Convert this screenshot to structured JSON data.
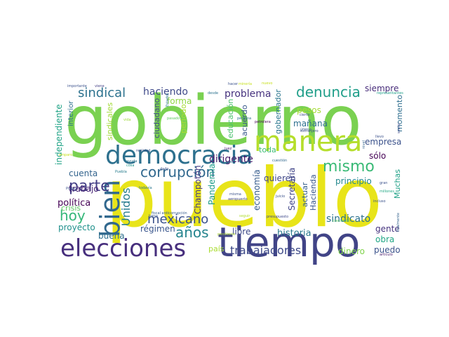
{
  "words": [
    {
      "text": "gobierno",
      "color": "#7ad151",
      "rot": 0
    },
    {
      "text": "pueblo",
      "color": "#e8e419",
      "rot": 0
    },
    {
      "text": "tiempo",
      "color": "#414487",
      "rot": 0
    },
    {
      "text": "elecciones",
      "color": "#472f7d",
      "rot": 0
    },
    {
      "text": "democracia",
      "color": "#2d708e",
      "rot": 0
    },
    {
      "text": "manera",
      "color": "#b5de2b",
      "rot": 0
    },
    {
      "text": "bien",
      "color": "#31688e",
      "rot": -90
    },
    {
      "text": "corrupción",
      "color": "#31688e",
      "rot": 0
    },
    {
      "text": "denuncia",
      "color": "#1f9e89",
      "rot": 0
    },
    {
      "text": "parte",
      "color": "#433e85",
      "rot": 0
    },
    {
      "text": "mismo",
      "color": "#3aba76",
      "rot": 0
    },
    {
      "text": "sindical",
      "color": "#2c728e",
      "rot": 0
    },
    {
      "text": "hoy",
      "color": "#35b779",
      "rot": 0
    },
    {
      "text": "mexicano",
      "color": "#3b528b",
      "rot": 0
    },
    {
      "text": "años",
      "color": "#25848e",
      "rot": 0
    },
    {
      "text": "Unidos",
      "color": "#287d8e",
      "rot": -90
    },
    {
      "text": "problema",
      "color": "#46327e",
      "rot": 0
    },
    {
      "text": "dirigente",
      "color": "#481a6c",
      "rot": 0
    },
    {
      "text": "trabajadores",
      "color": "#3e4a89",
      "rot": 0
    },
    {
      "text": "sindicato",
      "color": "#2c728e",
      "rot": 0
    },
    {
      "text": "independiente",
      "color": "#20a386",
      "rot": -90
    },
    {
      "text": "historia",
      "color": "#2a788e",
      "rot": 0
    },
    {
      "text": "siempre",
      "color": "#472c7a",
      "rot": 0
    },
    {
      "text": "empresa",
      "color": "#3b528b",
      "rot": 0
    },
    {
      "text": "sólo",
      "color": "#440154",
      "rot": 0
    },
    {
      "text": "haciendo",
      "color": "#3e4989",
      "rot": 0
    },
    {
      "text": "forma",
      "color": "#90d743",
      "rot": 0
    },
    {
      "text": "cuenta",
      "color": "#33638d",
      "rot": 0
    },
    {
      "text": "trabajo",
      "color": "#482576",
      "rot": 0
    },
    {
      "text": "política",
      "color": "#440154",
      "rot": 0
    },
    {
      "text": "proyecto",
      "color": "#21918c",
      "rot": 0
    },
    {
      "text": "crisis",
      "color": "#5ec962",
      "rot": 0
    },
    {
      "text": "buena",
      "color": "#2e6f8e",
      "rot": 0
    },
    {
      "text": "régimen",
      "color": "#39558c",
      "rot": 0
    },
    {
      "text": "país",
      "color": "#aadc32",
      "rot": 0
    },
    {
      "text": "libre",
      "color": "#3e4989",
      "rot": 0
    },
    {
      "text": "quieren",
      "color": "#3f4788",
      "rot": 0
    },
    {
      "text": "toda",
      "color": "#3dbc74",
      "rot": 0
    },
    {
      "text": "gente",
      "color": "#46337f",
      "rot": 0
    },
    {
      "text": "obra",
      "color": "#21a685",
      "rot": 0
    },
    {
      "text": "puedo",
      "color": "#3b528b",
      "rot": 0
    },
    {
      "text": "dinero",
      "color": "#81d34d",
      "rot": 0
    },
    {
      "text": "pesos",
      "color": "#a5db36",
      "rot": 0
    },
    {
      "text": "mañana",
      "color": "#2d708e",
      "rot": 0
    },
    {
      "text": "principio",
      "color": "#23888e",
      "rot": 0
    },
    {
      "text": "Muchas",
      "color": "#1fa187",
      "rot": -90
    },
    {
      "text": "Hacienda",
      "color": "#39568c",
      "rot": -90
    },
    {
      "text": "actuar",
      "color": "#355f8d",
      "rot": -90
    },
    {
      "text": "Secretaría",
      "color": "#404588",
      "rot": -90
    },
    {
      "text": "economía",
      "color": "#365c8d",
      "rot": -90
    },
    {
      "text": "Pandemia",
      "color": "#1e9c89",
      "rot": -90
    },
    {
      "text": "Champotón",
      "color": "#443a83",
      "rot": -90
    },
    {
      "text": "periodo",
      "color": "#aadc32",
      "rot": -90
    },
    {
      "text": "ciudadano",
      "color": "#3f4889",
      "rot": -90
    },
    {
      "text": "educación",
      "color": "#4ac16d",
      "rot": -90
    },
    {
      "text": "acuerdo",
      "color": "#38588c",
      "rot": -90
    },
    {
      "text": "gobernador",
      "color": "#2a768e",
      "rot": -90
    },
    {
      "text": "momento",
      "color": "#2e6e8e",
      "rot": -90
    },
    {
      "text": "sindicales",
      "color": "#a2da37",
      "rot": -90
    },
    {
      "text": "interior",
      "color": "#2d718e",
      "rot": -90
    },
    {
      "text": "importante",
      "color": "#3b518b",
      "rot": 0
    },
    {
      "text": "viene",
      "color": "#433e85",
      "rot": 0
    },
    {
      "text": "ayuda",
      "color": "#2c728e",
      "rot": 0
    },
    {
      "text": "cosa",
      "color": "#1f968b",
      "rot": 0
    },
    {
      "text": "realidad",
      "color": "#3b528b",
      "rot": 0
    },
    {
      "text": "vida",
      "color": "#9fda3a",
      "rot": 0
    },
    {
      "text": "pasado",
      "color": "#5ec962",
      "rot": 0
    },
    {
      "text": "amparo",
      "color": "#c8e020",
      "rot": 0
    },
    {
      "text": "Puebla",
      "color": "#287c8e",
      "rot": 0
    },
    {
      "text": "dado",
      "color": "#3b528b",
      "rot": 0
    },
    {
      "text": "todavía",
      "color": "#2a768e",
      "rot": 0
    },
    {
      "text": "Poder",
      "color": "#3b528b",
      "rot": 0
    },
    {
      "text": "fiscal anticorrupción",
      "color": "#365d8d",
      "rot": 0
    },
    {
      "text": "toma",
      "color": "#39558c",
      "rot": 0
    },
    {
      "text": "pendiente",
      "color": "#b0dd2f",
      "rot": 0
    },
    {
      "text": "juez",
      "color": "#481f70",
      "rot": 0
    },
    {
      "text": "vez",
      "color": "#2d708e",
      "rot": 0
    },
    {
      "text": "misma",
      "color": "#3b528b",
      "rot": 0
    },
    {
      "text": "aeropuerto",
      "color": "#404688",
      "rot": 0
    },
    {
      "text": "seguir",
      "color": "#b0dd2f",
      "rot": 0
    },
    {
      "text": "presupuesto",
      "color": "#3e4989",
      "rot": 0
    },
    {
      "text": "juicio",
      "color": "#3b528b",
      "rot": 0
    },
    {
      "text": "cuestión",
      "color": "#31688e",
      "rot": 0
    },
    {
      "text": "creciendo",
      "color": "#5ec962",
      "rot": 0
    },
    {
      "text": "gran",
      "color": "#3b528b",
      "rot": 0
    },
    {
      "text": "millones",
      "color": "#22a884",
      "rot": 0
    },
    {
      "text": "artículo",
      "color": "#481a6c",
      "rot": 0
    },
    {
      "text": "incluso",
      "color": "#3b528b",
      "rot": 0
    },
    {
      "text": "finalmente",
      "color": "#33638d",
      "rot": -90
    },
    {
      "text": "representantes",
      "color": "#1f9e89",
      "rot": 0
    },
    {
      "text": "último",
      "color": "#39568c",
      "rot": 0
    },
    {
      "text": "extranjero",
      "color": "#3b528b",
      "rot": 0
    },
    {
      "text": "cierto",
      "color": "#3e4989",
      "rot": 0
    },
    {
      "text": "petrolera",
      "color": "#440154",
      "rot": 0
    },
    {
      "text": "persona",
      "color": "#2d708e",
      "rot": 0
    },
    {
      "text": "desde",
      "color": "#2c728e",
      "rot": 0
    },
    {
      "text": "hacer",
      "color": "#3b528b",
      "rot": 0
    },
    {
      "text": "minería",
      "color": "#c8e020",
      "rot": 0
    },
    {
      "text": "nuevo",
      "color": "#c8e020",
      "rot": 0
    },
    {
      "text": "llevo",
      "color": "#3b528b",
      "rot": 0
    },
    {
      "text": "Estados",
      "color": "#2a768e",
      "rot": -90
    },
    {
      "text": "nivel",
      "color": "#33638d",
      "rot": -90
    },
    {
      "text": "sector",
      "color": "#3e4989",
      "rot": -90
    }
  ]
}
